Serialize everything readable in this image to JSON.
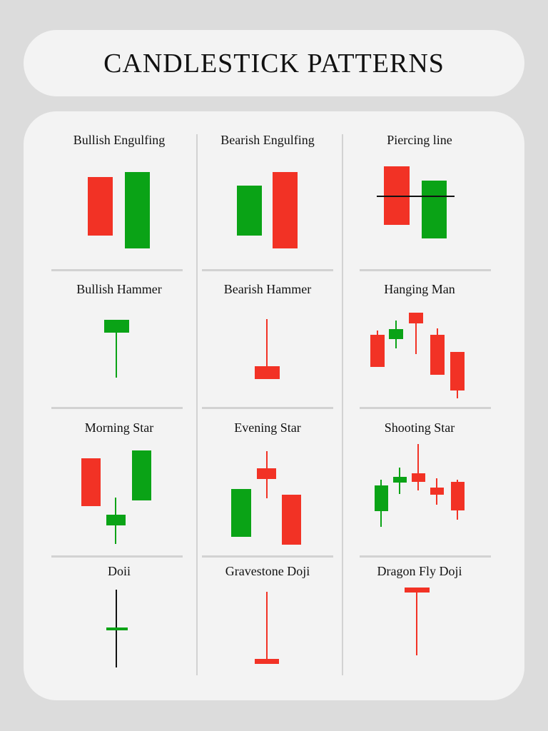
{
  "title": "CANDLESTICK PATTERNS",
  "colors": {
    "bullish": "#0aa316",
    "bearish": "#f23225",
    "wick_neutral": "#111111"
  },
  "patterns": [
    {
      "name": "Bullish Engulfing"
    },
    {
      "name": "Bearish Engulfing"
    },
    {
      "name": "Piercing line"
    },
    {
      "name": "Bullish Hammer"
    },
    {
      "name": "Bearish Hammer"
    },
    {
      "name": "Hanging Man"
    },
    {
      "name": "Morning Star"
    },
    {
      "name": "Evening Star"
    },
    {
      "name": "Shooting Star"
    },
    {
      "name": "Doii"
    },
    {
      "name": "Gravestone Doji"
    },
    {
      "name": "Dragon Fly Doji"
    }
  ]
}
